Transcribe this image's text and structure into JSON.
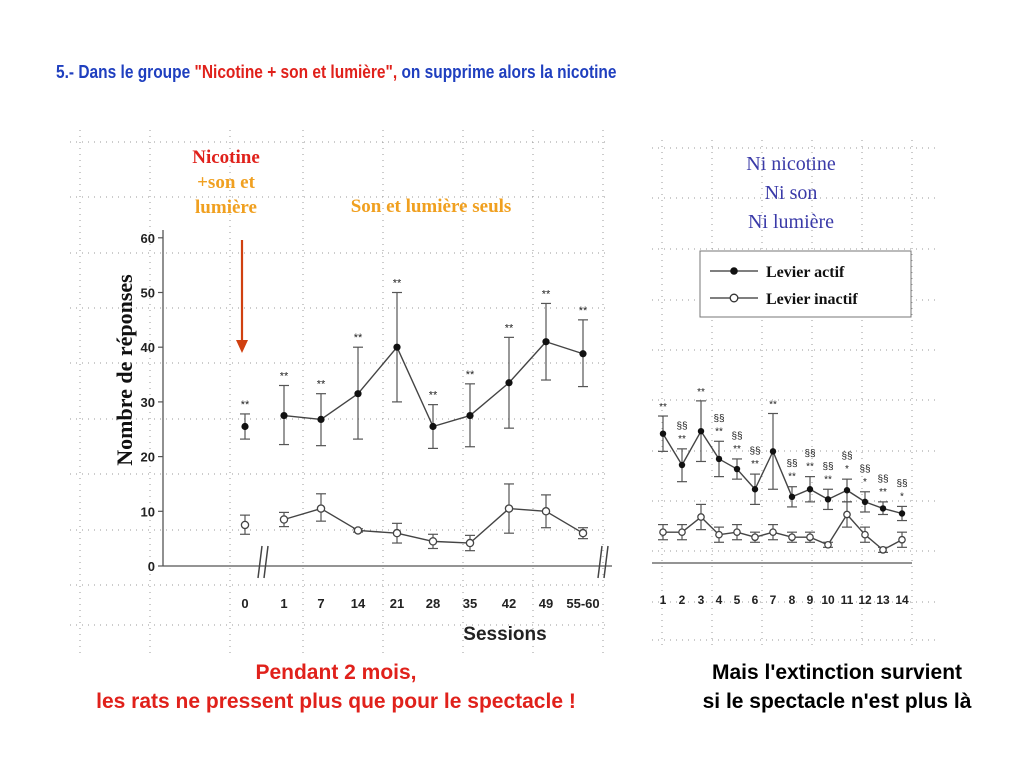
{
  "slide": {
    "title_part1": "5.- Dans le groupe ",
    "title_part2": "\"Nicotine + son et lumière\",",
    "title_part3": " on supprime alors la nicotine",
    "caption_left_line1": "Pendant 2 mois,",
    "caption_left_line2": "les rats ne pressent plus que pour le spectacle !",
    "caption_right_line1": "Mais l'extinction survient",
    "caption_right_line2": "si le spectacle n'est plus là"
  },
  "colors": {
    "title_blue": "#1f3fbf",
    "title_red": "#e0211b",
    "annotation_orange": "#f0a020",
    "arrow": "#d04010",
    "annotation_purple": "#3a3aa8"
  },
  "chart_data": [
    {
      "type": "line",
      "title": "",
      "xlabel": "Sessions",
      "ylabel": "Nombre de réponses",
      "ylim": [
        0,
        60
      ],
      "yticks": [
        "0",
        "10",
        "20",
        "30",
        "40",
        "50",
        "60"
      ],
      "categories": [
        "0",
        "1",
        "7",
        "14",
        "21",
        "28",
        "35",
        "42",
        "49",
        "55-60"
      ],
      "series": [
        {
          "name": "Levier actif",
          "marker": "filled",
          "values": [
            25.5,
            27.5,
            26.8,
            31.5,
            40,
            25.5,
            27.5,
            33.5,
            41,
            38.8
          ],
          "err_low": [
            23.2,
            22.2,
            22,
            23.2,
            30,
            21.5,
            21.8,
            25.2,
            34,
            32.8
          ],
          "err_high": [
            27.8,
            33,
            31.5,
            40,
            50,
            29.5,
            33.3,
            41.8,
            48,
            45
          ],
          "sig": [
            "**",
            "**",
            "**",
            "**",
            "**",
            "**",
            "**",
            "**",
            "**",
            "**"
          ]
        },
        {
          "name": "Levier inactif",
          "marker": "open",
          "values": [
            7.5,
            8.5,
            10.5,
            6.5,
            6,
            4.5,
            4.2,
            10.5,
            10,
            6
          ],
          "err_low": [
            5.8,
            7.2,
            8.2,
            6.2,
            4.2,
            3.2,
            2.8,
            6,
            7,
            5
          ],
          "err_high": [
            9.3,
            9.8,
            13.2,
            6.8,
            7.8,
            5.8,
            5.6,
            15,
            13,
            7
          ]
        }
      ],
      "annotations": {
        "nicotine": [
          "Nicotine",
          "+son et",
          "lumière"
        ],
        "son_lumiere": "Son et lumière seuls"
      },
      "grid": true
    },
    {
      "type": "line",
      "title": "",
      "xlabel": "",
      "ylabel": "",
      "categories": [
        "1",
        "2",
        "3",
        "4",
        "5",
        "6",
        "7",
        "8",
        "9",
        "10",
        "11",
        "12",
        "13",
        "14"
      ],
      "legend": {
        "position": "top-right",
        "active": "Levier actif",
        "inactive": "Levier inactif"
      },
      "annotations": {
        "condition": [
          "Ni nicotine",
          "Ni son",
          "Ni lumière"
        ]
      },
      "series": [
        {
          "name": "Levier actif",
          "marker": "filled",
          "values": [
            26,
            19.8,
            26.5,
            21,
            19,
            15,
            22.5,
            13.5,
            15,
            13,
            14.8,
            12.5,
            11.2,
            10.2
          ],
          "err_low": [
            22.5,
            16.5,
            20.5,
            17.5,
            17,
            12,
            15,
            11.5,
            12.5,
            11,
            12.5,
            10.5,
            10,
            8.8
          ],
          "err_high": [
            29.5,
            23,
            32.5,
            24.5,
            21,
            18,
            30,
            15.5,
            17.5,
            15,
            17,
            14.5,
            12.5,
            11.6
          ],
          "sig_top": [
            "**",
            "§§",
            "**",
            "§§",
            "§§",
            "§§",
            "**",
            "§§",
            "§§",
            "§§",
            "§§",
            "§§",
            "§§",
            "§§"
          ],
          "sig_bottom": [
            "",
            "**",
            "",
            "**",
            "**",
            "**",
            "",
            "**",
            "**",
            "**",
            "*",
            "*",
            "**",
            "*"
          ]
        },
        {
          "name": "Levier inactif",
          "marker": "open",
          "values": [
            6.5,
            6.5,
            9.5,
            6,
            6.5,
            5.5,
            6.5,
            5.5,
            5.5,
            4,
            10,
            6,
            3,
            5
          ],
          "err_low": [
            5,
            5,
            7,
            4.5,
            5,
            4.5,
            5,
            4.5,
            4.5,
            3.5,
            7.5,
            4.5,
            2.5,
            3.5
          ],
          "err_high": [
            8,
            8,
            12,
            7.5,
            8,
            6.5,
            8,
            6.5,
            6.5,
            4.5,
            12.5,
            7.5,
            3.5,
            6.5
          ]
        }
      ]
    }
  ]
}
